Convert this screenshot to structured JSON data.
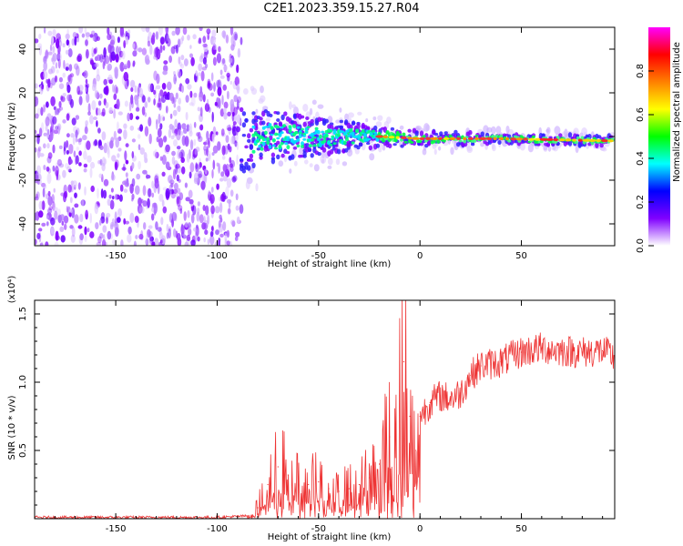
{
  "title": "C2E1.2023.359.15.27.R04",
  "chart_data": [
    {
      "type": "heatmap",
      "xlabel": "Height of straight line (km)",
      "ylabel": "Frequency (Hz)",
      "xlim": [
        -190,
        96
      ],
      "ylim": [
        -50,
        50
      ],
      "xticks": [
        -150,
        -100,
        -50,
        0,
        50
      ],
      "yticks": [
        -40,
        -20,
        0,
        20,
        40
      ],
      "colorbar": {
        "label": "Normalized spectral amplitude",
        "range": [
          0,
          1
        ],
        "ticks": [
          "0.0",
          "0.2",
          "0.4",
          "0.6",
          "0.8"
        ],
        "colors": [
          "#ffffff",
          "#8000ff",
          "#0000ff",
          "#00ffff",
          "#00ff00",
          "#ffff00",
          "#ff8000",
          "#ff0000",
          "#ff00ff"
        ]
      },
      "noise_region": {
        "x_range": [
          -190,
          -88
        ],
        "freq_range": [
          -50,
          50
        ]
      },
      "band": [
        {
          "x": -88,
          "center": -2,
          "halfwidth": 12
        },
        {
          "x": -75,
          "center": 0,
          "halfwidth": 10
        },
        {
          "x": -60,
          "center": 0,
          "halfwidth": 8
        },
        {
          "x": -40,
          "center": 0,
          "halfwidth": 6
        },
        {
          "x": -20,
          "center": 0,
          "halfwidth": 4
        },
        {
          "x": 0,
          "center": -1,
          "halfwidth": 3
        },
        {
          "x": 40,
          "center": -1,
          "halfwidth": 2
        },
        {
          "x": 95,
          "center": -2,
          "halfwidth": 2
        }
      ]
    },
    {
      "type": "line",
      "xlabel": "Height of straight line (km)",
      "ylabel": "SNR (10 * v/v)",
      "y_multiplier": "(x10⁴)",
      "xlim": [
        -190,
        96
      ],
      "ylim": [
        0,
        1.6
      ],
      "xticks": [
        -150,
        -100,
        -50,
        0,
        50
      ],
      "yticks": [
        "0.5",
        "1.0",
        "1.5"
      ],
      "color": "#ee3333",
      "series": [
        {
          "x": [
            -190,
            -150,
            -100,
            -85,
            -80,
            -75,
            -70,
            -65,
            -60,
            -55,
            -50,
            -45,
            -40,
            -35,
            -30,
            -25,
            -20,
            -15,
            -10,
            -8,
            -5,
            -2,
            0,
            5,
            10,
            15,
            20,
            25,
            30,
            40,
            50,
            60,
            70,
            80,
            90,
            96
          ],
          "y": [
            0.01,
            0.01,
            0.01,
            0.02,
            0.08,
            0.25,
            0.38,
            0.32,
            0.3,
            0.25,
            0.27,
            0.22,
            0.2,
            0.22,
            0.25,
            0.3,
            0.4,
            0.6,
            0.9,
            1.15,
            0.75,
            0.5,
            0.75,
            0.85,
            0.9,
            0.88,
            0.92,
            1.05,
            1.12,
            1.15,
            1.22,
            1.25,
            1.23,
            1.22,
            1.23,
            1.18
          ]
        }
      ]
    }
  ]
}
